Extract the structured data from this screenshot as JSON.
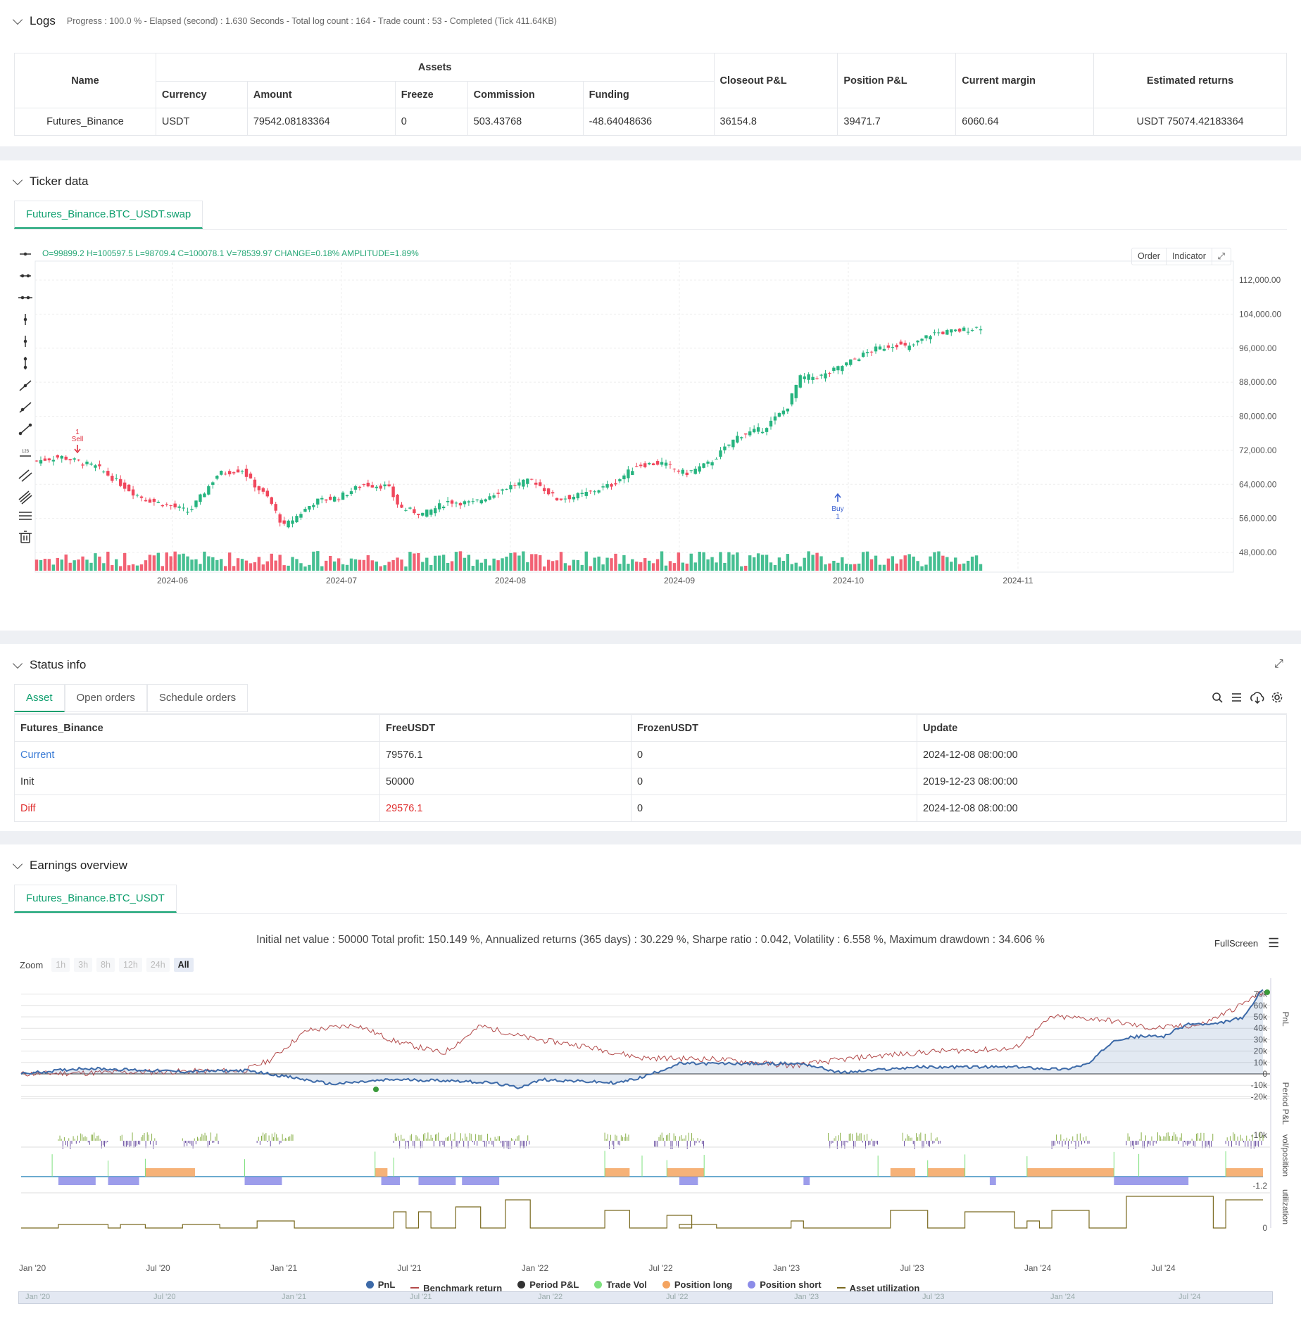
{
  "logs": {
    "title": "Logs",
    "summary": "Progress : 100.0 % - Elapsed (second) : 1.630  Seconds - Total log count : 164 - Trade count : 53 - Completed (Tick 411.64KB)",
    "table": {
      "name_header": "Name",
      "assets_header": "Assets",
      "sub_headers": [
        "Currency",
        "Amount",
        "Freeze",
        "Commission",
        "Funding"
      ],
      "extra_headers": [
        "Closeout P&L",
        "Position P&L",
        "Current margin",
        "Estimated returns"
      ],
      "row": [
        "Futures_Binance",
        "USDT",
        "79542.08183364",
        "0",
        "503.43768",
        "-48.64048636",
        "36154.8",
        "39471.7",
        "6060.64",
        "USDT 75074.42183364"
      ]
    }
  },
  "ticker": {
    "title": "Ticker data",
    "tab": "Futures_Binance.BTC_USDT.swap",
    "ohlc": {
      "o": "O=99899.2",
      "h": "H=100597.5",
      "l": "L=98709.4",
      "c": "C=100078.1",
      "v": "V=78539.97",
      "change": "CHANGE=0.18%",
      "amplitude": "AMPLITUDE=1.89%"
    },
    "buttons": {
      "order": "Order",
      "indicator": "Indicator"
    },
    "y_ticks": [
      "112,000.00",
      "104,000.00",
      "96,000.00",
      "88,000.00",
      "80,000.00",
      "72,000.00",
      "64,000.00",
      "56,000.00",
      "48,000.00"
    ],
    "x_ticks": [
      "2024-06",
      "2024-07",
      "2024-08",
      "2024-09",
      "2024-10",
      "2024-11"
    ],
    "markers": {
      "sell_count": "1",
      "sell_label": "Sell",
      "buy_label": "Buy",
      "buy_count": "1"
    },
    "colors": {
      "up": "#26b47f",
      "down": "#f0475c"
    }
  },
  "status": {
    "title": "Status info",
    "tabs": [
      "Asset",
      "Open orders",
      "Schedule orders"
    ],
    "headers": [
      "Futures_Binance",
      "FreeUSDT",
      "FrozenUSDT",
      "Update"
    ],
    "rows": [
      [
        "Current",
        "79576.1",
        "0",
        "2024-12-08 08:00:00"
      ],
      [
        "Init",
        "50000",
        "0",
        "2019-12-23 08:00:00"
      ],
      [
        "Diff",
        "29576.1",
        "0",
        "2024-12-08 08:00:00"
      ]
    ]
  },
  "earnings": {
    "title": "Earnings overview",
    "tab": "Futures_Binance.BTC_USDT",
    "summary": "Initial net value : 50000  Total profit: 150.149 %, Annualized returns (365 days) : 30.229 %, Sharpe ratio : 0.042, Volatility : 6.558 %, Maximum drawdown : 34.606 %",
    "fullscreen": "FullScreen",
    "zoom_label": "Zoom",
    "zoom_options": [
      "1h",
      "3h",
      "8h",
      "12h",
      "24h",
      "All"
    ],
    "pnl_ticks": [
      "70k",
      "60k",
      "50k",
      "40k",
      "30k",
      "20k",
      "10k",
      "0",
      "-10k",
      "-20k"
    ],
    "axis_labels": [
      "PnL",
      "Period P&L",
      "vol/position",
      "utilization"
    ],
    "period_tick": "-10k",
    "vol_tick": "-1.2",
    "util_tick": "0",
    "x_ticks": [
      "Jan '20",
      "Jul '20",
      "Jan '21",
      "Jul '21",
      "Jan '22",
      "Jul '22",
      "Jan '23",
      "Jul '23",
      "Jan '24",
      "Jul '24"
    ],
    "legend": [
      {
        "name": "PnL",
        "color": "#3d6aa8"
      },
      {
        "name": "Benchmark return",
        "color": "#b34a4a"
      },
      {
        "name": "Period P&L",
        "color": "#333333"
      },
      {
        "name": "Trade Vol",
        "color": "#7ee07e"
      },
      {
        "name": "Position long",
        "color": "#f4a460"
      },
      {
        "name": "Position short",
        "color": "#8c8ce8"
      },
      {
        "name": "Asset utilization",
        "color": "#7a6a20"
      }
    ]
  }
}
